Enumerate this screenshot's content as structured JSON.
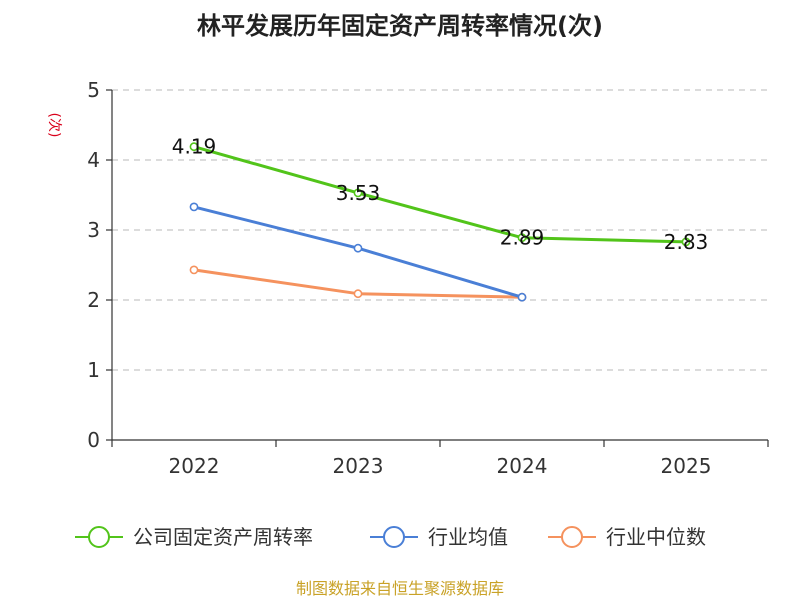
{
  "chart_data": {
    "type": "line",
    "title": "林平发展历年固定资产周转率情况(次)",
    "ylabel": "(次)",
    "xlabel": "",
    "categories": [
      "2022",
      "2023",
      "2024",
      "2025"
    ],
    "ylim": [
      0,
      5
    ],
    "yticks": [
      "0",
      "1",
      "2",
      "3",
      "4",
      "5"
    ],
    "grid": true,
    "legend_position": "bottom",
    "series": [
      {
        "name": "公司固定资产周转率",
        "color": "#52c41a",
        "values": [
          4.19,
          3.53,
          2.89,
          2.83
        ],
        "labels": [
          "4.19",
          "3.53",
          "2.89",
          "2.83"
        ]
      },
      {
        "name": "行业均值",
        "color": "#4a7fd6",
        "values": [
          3.33,
          2.74,
          2.04,
          null
        ]
      },
      {
        "name": "行业中位数",
        "color": "#f5925e",
        "values": [
          2.43,
          2.09,
          2.04,
          null
        ]
      }
    ],
    "ylabel_color": "#d9001b",
    "source": "制图数据来自恒生聚源数据库",
    "source_color": "#c9a227"
  }
}
